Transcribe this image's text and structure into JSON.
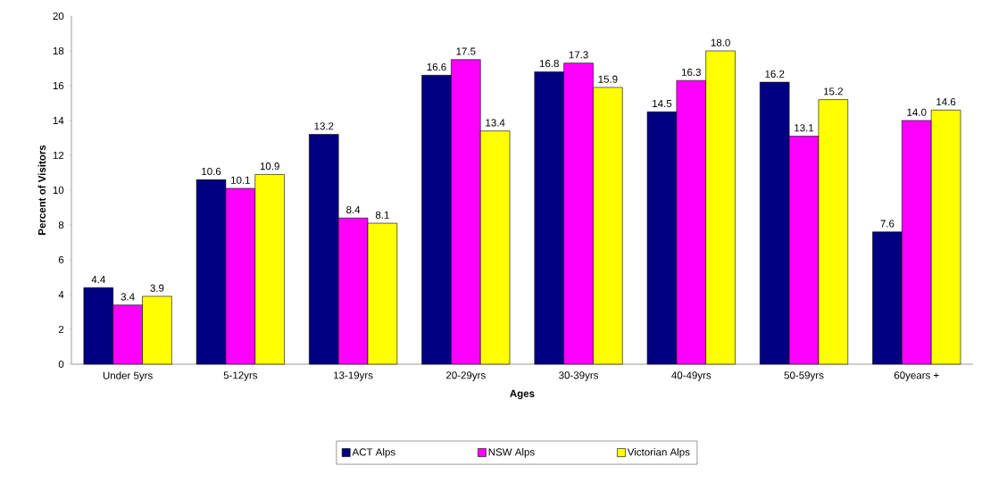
{
  "chart_data": {
    "type": "bar",
    "xlabel": "Ages",
    "ylabel": "Percent of Visitors",
    "categories": [
      "Under 5yrs",
      "5-12yrs",
      "13-19yrs",
      "20-29yrs",
      "30-39yrs",
      "40-49yrs",
      "50-59yrs",
      "60years +"
    ],
    "series": [
      {
        "name": "ACT Alps",
        "color": "#000080",
        "values": [
          4.4,
          10.6,
          13.2,
          16.6,
          16.8,
          14.5,
          16.2,
          7.6
        ],
        "value_labels": [
          "4.4",
          "10.6",
          "13.2",
          "16.6",
          "16.8",
          "14.5",
          "16.2",
          "7.6"
        ]
      },
      {
        "name": "NSW Alps",
        "color": "#ff00ff",
        "values": [
          3.4,
          10.1,
          8.4,
          17.5,
          17.3,
          16.3,
          13.1,
          14.0
        ],
        "value_labels": [
          "3.4",
          "10.1",
          "8.4",
          "17.5",
          "17.3",
          "16.3",
          "13.1",
          "14.0"
        ]
      },
      {
        "name": "Victorian Alps",
        "color": "#ffff00",
        "values": [
          3.9,
          10.9,
          8.1,
          13.4,
          15.9,
          18.0,
          15.2,
          14.6
        ],
        "value_labels": [
          "3.9",
          "10.9",
          "8.1",
          "13.4",
          "15.9",
          "18.0",
          "15.2",
          "14.6"
        ]
      }
    ],
    "ylim": [
      0,
      20
    ],
    "yticks": [
      0,
      2,
      4,
      6,
      8,
      10,
      12,
      14,
      16,
      18,
      20
    ],
    "grid": false,
    "legend": "bottom"
  }
}
